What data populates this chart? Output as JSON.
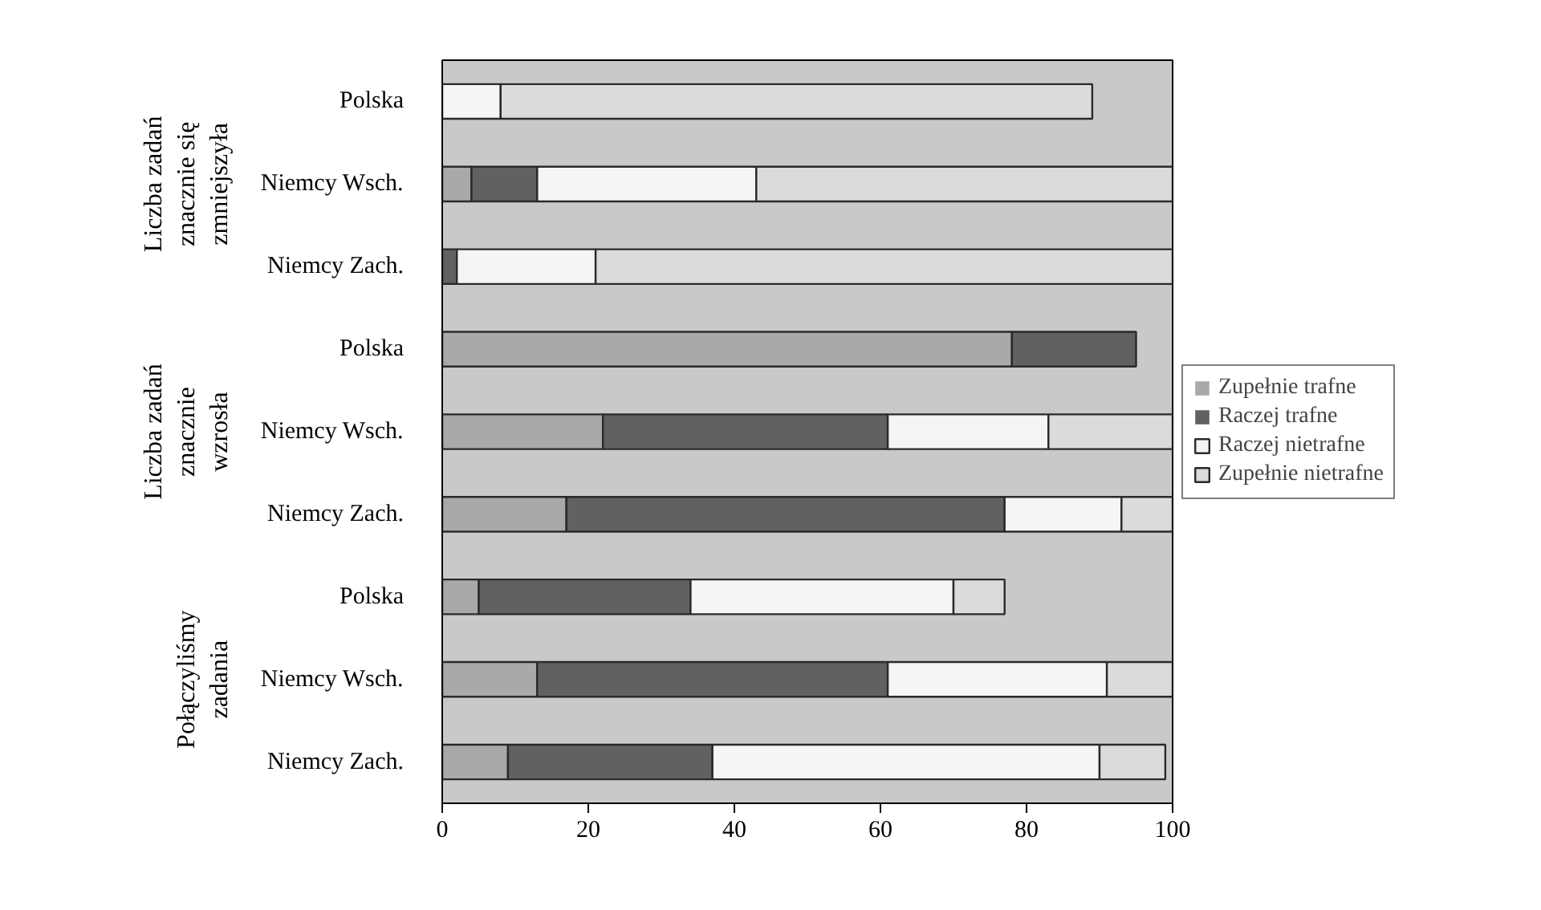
{
  "chart_data": {
    "type": "bar",
    "orientation": "horizontal",
    "stacked": true,
    "categories": [
      "Polska",
      "Niemcy Wsch.",
      "Niemcy Zach.",
      "Polska",
      "Niemcy Wsch.",
      "Niemcy Zach.",
      "Polska",
      "Niemcy Wsch.",
      "Niemcy Zach."
    ],
    "series": [
      {
        "name": "Zupełnie trafne",
        "color": "#a9a9ab",
        "values": [
          0,
          4,
          0,
          78,
          22,
          17,
          5,
          13,
          9
        ]
      },
      {
        "name": "Raczej trafne",
        "color": "#616163",
        "values": [
          0,
          9,
          2,
          17,
          39,
          60,
          29,
          48,
          28
        ]
      },
      {
        "name": "Raczej nietrafne",
        "color": "#f5f5f5",
        "values": [
          8,
          30,
          19,
          0,
          22,
          16,
          36,
          30,
          53
        ]
      },
      {
        "name": "Zupełnie nietrafne",
        "color": "#dadbdc",
        "values": [
          81,
          57,
          79,
          0,
          17,
          7,
          7,
          9,
          9
        ]
      }
    ],
    "annotations": [
      "Liczba zadań\nznacznie się\nzmniejszyła",
      "Liczba zadań\nznacznie\nwzrosła",
      "Połączyliśmy\nzadania"
    ],
    "xlim": [
      0,
      100
    ],
    "xticks": [
      0,
      20,
      40,
      60,
      80,
      100
    ],
    "grid": false,
    "legend": "right"
  }
}
